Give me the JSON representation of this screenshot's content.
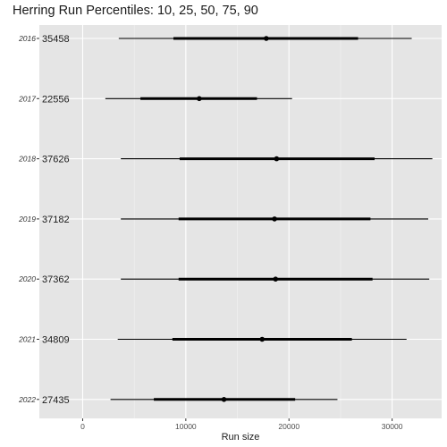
{
  "chart_data": {
    "type": "interval",
    "title": "Herring Run Percentiles: 10, 25, 50, 75, 90",
    "xlabel": "Run size",
    "ylabel": "",
    "xlim": [
      -4200,
      34800
    ],
    "xticks": [
      0,
      10000,
      20000,
      30000
    ],
    "grid": true,
    "rows": [
      {
        "year": "2016",
        "value_label": "35458",
        "p10": 3500,
        "p25": 8800,
        "p50": 17800,
        "p75": 26700,
        "p90": 31900
      },
      {
        "year": "2017",
        "value_label": "22556",
        "p10": 2200,
        "p25": 5600,
        "p50": 11300,
        "p75": 16900,
        "p90": 20300
      },
      {
        "year": "2018",
        "value_label": "37626",
        "p10": 3700,
        "p25": 9400,
        "p50": 18800,
        "p75": 28300,
        "p90": 33900
      },
      {
        "year": "2019",
        "value_label": "37182",
        "p10": 3700,
        "p25": 9300,
        "p50": 18600,
        "p75": 27900,
        "p90": 33500
      },
      {
        "year": "2020",
        "value_label": "37362",
        "p10": 3700,
        "p25": 9300,
        "p50": 18700,
        "p75": 28100,
        "p90": 33600
      },
      {
        "year": "2021",
        "value_label": "34809",
        "p10": 3400,
        "p25": 8700,
        "p50": 17400,
        "p75": 26100,
        "p90": 31400
      },
      {
        "year": "2022",
        "value_label": "27435",
        "p10": 2700,
        "p25": 6900,
        "p50": 13700,
        "p75": 20600,
        "p90": 24700
      }
    ],
    "colors": {
      "panel": "#e5e5e5",
      "grid_major": "#ffffff",
      "grid_minor": "#f2f2f2",
      "interval": "#000000",
      "tick": "#333333"
    }
  }
}
